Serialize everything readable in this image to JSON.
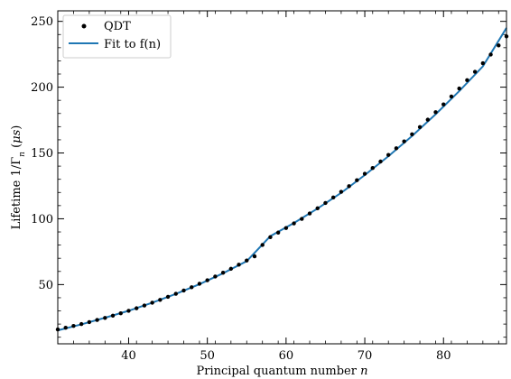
{
  "chart_data": {
    "type": "scatter",
    "xlabel": "Principal quantum number n",
    "ylabel": "Lifetime 1/Γn (μs)",
    "xlim": [
      31,
      88
    ],
    "ylim": [
      5,
      258
    ],
    "x_ticks": [
      40,
      50,
      60,
      70,
      80
    ],
    "y_ticks": [
      50,
      100,
      150,
      200,
      250
    ],
    "grid": false,
    "legend_position": "top-left",
    "series": [
      {
        "name": "QDT",
        "kind": "scatter",
        "color": "#000000",
        "x": [
          31,
          32,
          33,
          34,
          35,
          36,
          37,
          38,
          39,
          40,
          41,
          42,
          43,
          44,
          45,
          46,
          47,
          48,
          49,
          50,
          51,
          52,
          53,
          54,
          55,
          56,
          57,
          58,
          59,
          60,
          61,
          62,
          63,
          64,
          65,
          66,
          67,
          68,
          69,
          70,
          71,
          72,
          73,
          74,
          75,
          76,
          77,
          78,
          79,
          80,
          81,
          82,
          83,
          84,
          85,
          86,
          87,
          88
        ],
        "y": [
          15.9,
          17.2,
          18.6,
          20.0,
          21.5,
          23.1,
          24.7,
          26.4,
          28.2,
          30.1,
          32.0,
          34.1,
          36.2,
          38.4,
          40.7,
          43.0,
          45.5,
          48.0,
          50.6,
          53.3,
          56.1,
          59.0,
          62.0,
          65.1,
          68.3,
          71.5,
          80.1,
          86.0,
          89.5,
          93.0,
          96.5,
          99.9,
          104.0,
          108.0,
          112.0,
          116.2,
          120.5,
          124.8,
          129.3,
          134.2,
          138.6,
          143.5,
          148.5,
          153.6,
          158.8,
          164.2,
          169.7,
          175.3,
          181.0,
          186.9,
          192.9,
          199.0,
          205.3,
          211.7,
          218.2,
          224.8,
          231.7,
          238.6
        ]
      },
      {
        "name": "Fit to f(n)",
        "kind": "line",
        "color": "#1f77b4",
        "x": [
          31,
          34,
          37,
          40,
          43,
          46,
          49,
          52,
          55,
          58,
          61,
          64,
          67,
          70,
          73,
          76,
          79,
          82,
          85,
          88
        ],
        "y": [
          15.2,
          19.8,
          24.8,
          30.1,
          36.2,
          42.9,
          50.3,
          58.6,
          67.8,
          86.8,
          96.8,
          107.8,
          119.7,
          133.2,
          147.5,
          162.9,
          179.4,
          197.0,
          215.8,
          245.0
        ]
      }
    ]
  }
}
